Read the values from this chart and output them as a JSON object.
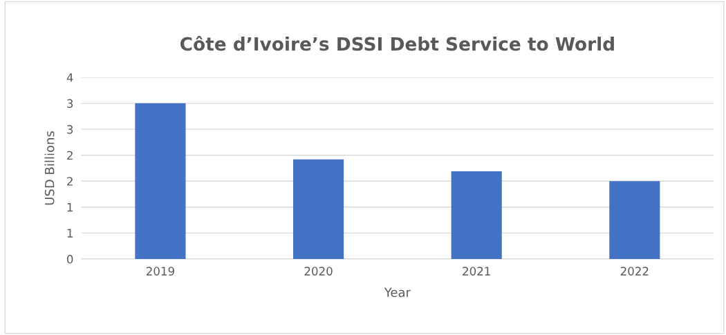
{
  "chart_data": {
    "type": "bar",
    "title": "Côte d’Ivoire’s DSSI Debt Service to World",
    "xlabel": "Year",
    "ylabel": "USD Billions",
    "categories": [
      "2019",
      "2020",
      "2021",
      "2022"
    ],
    "values": [
      3.0,
      1.92,
      1.69,
      1.5
    ],
    "color": "#4472c4",
    "ylim": [
      0,
      3.5
    ],
    "yticks": [
      0,
      {
        "value": 0.5,
        "label": "1"
      },
      1,
      {
        "value": 1.5,
        "label": "2"
      },
      2,
      {
        "value": 2.5,
        "label": "3"
      },
      3,
      {
        "value": 3.5,
        "label": "4"
      }
    ],
    "grid": "y",
    "legend": false
  }
}
